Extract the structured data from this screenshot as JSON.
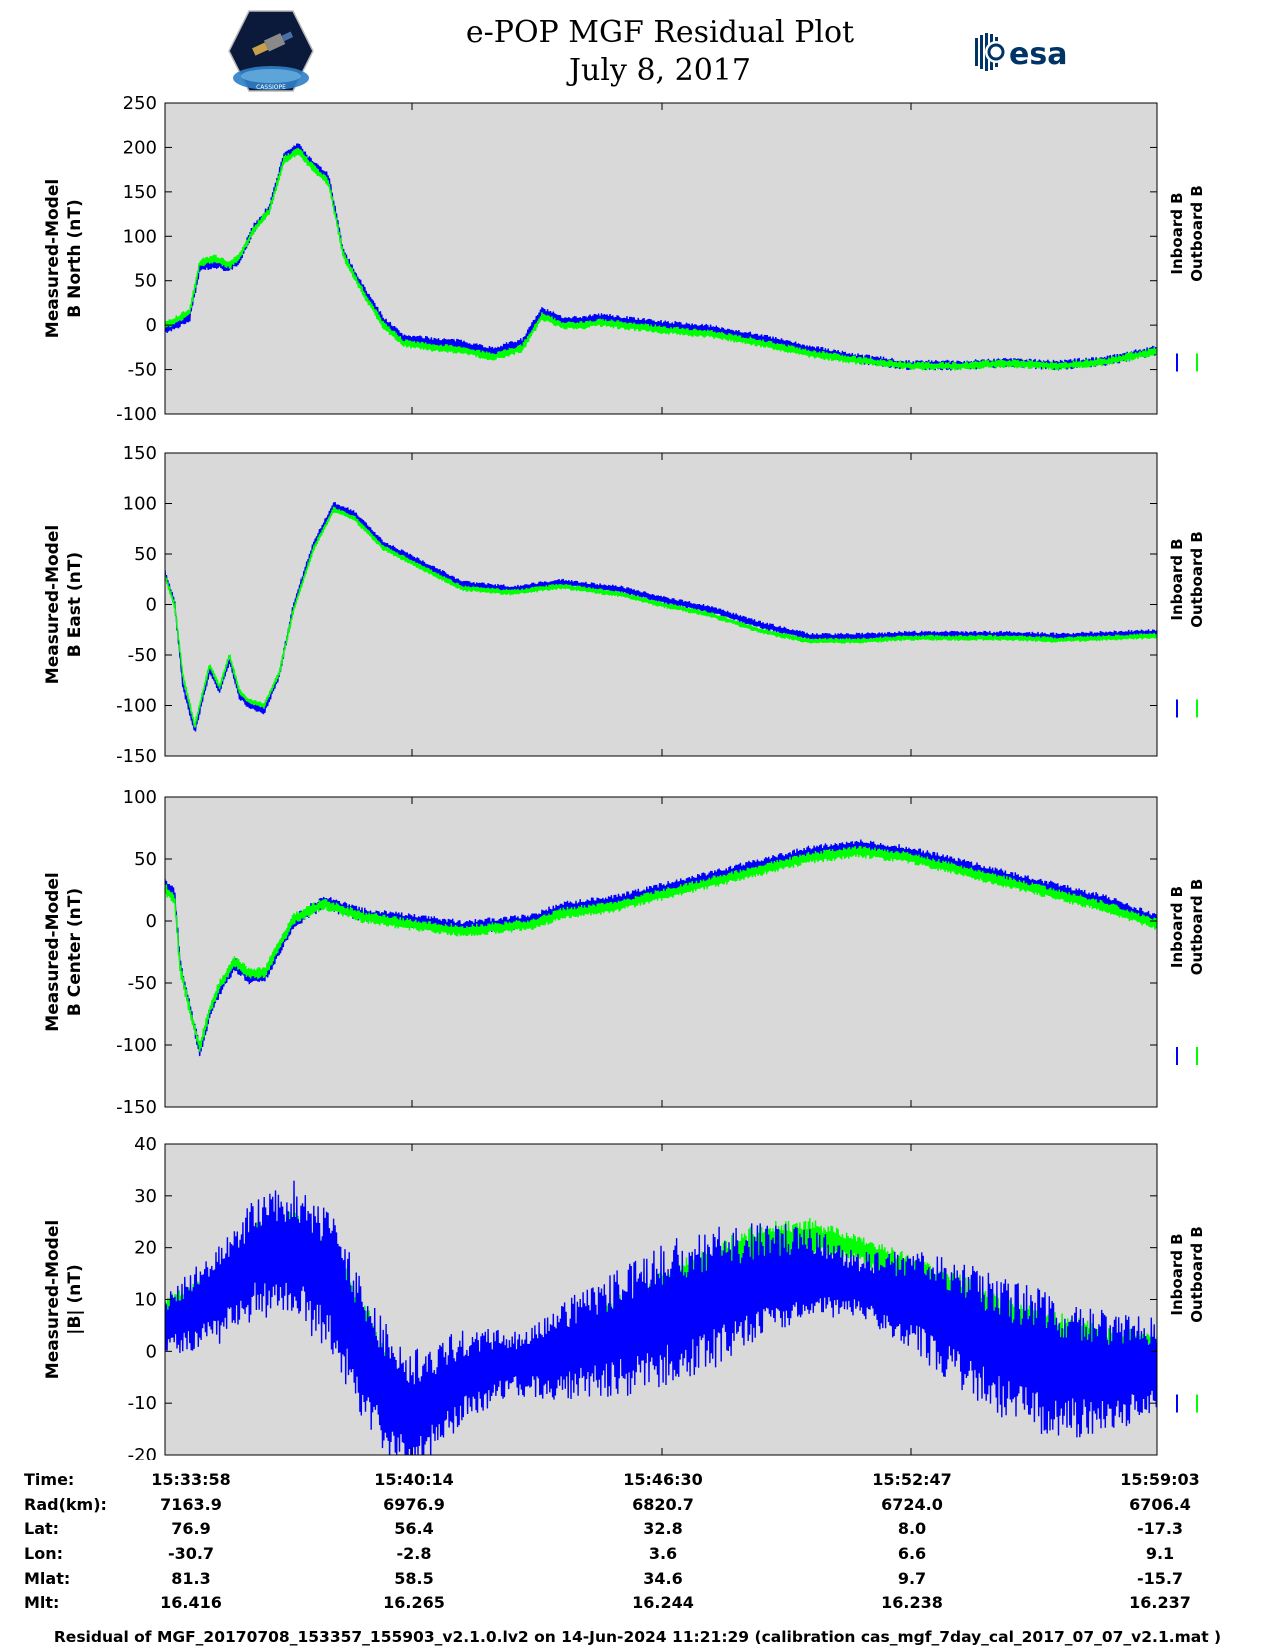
{
  "header": {
    "title": "e-POP MGF Residual Plot",
    "date": "July 8, 2017",
    "esa_logo_text": "esa",
    "cassiope_logo_text": "CASSIOPE"
  },
  "colors": {
    "inboard": "#0000ff",
    "outboard": "#00ff00",
    "plot_bg": "#d9d9d9"
  },
  "chart_data": [
    {
      "type": "line",
      "ylabel": [
        "Measured-Model",
        "B North (nT)"
      ],
      "ylim": [
        -100,
        250
      ],
      "yticks": [
        -100,
        -50,
        0,
        50,
        100,
        150,
        200,
        250
      ],
      "legend": [
        "Inboard B",
        "Outboard B"
      ],
      "legend_position": "right",
      "series": [
        {
          "name": "Inboard B",
          "color": "#0000ff",
          "x": [
            0,
            0.01,
            0.025,
            0.035,
            0.05,
            0.065,
            0.075,
            0.09,
            0.105,
            0.12,
            0.135,
            0.145,
            0.165,
            0.18,
            0.2,
            0.22,
            0.24,
            0.26,
            0.3,
            0.33,
            0.36,
            0.38,
            0.4,
            0.42,
            0.44,
            0.46,
            0.5,
            0.55,
            0.6,
            0.65,
            0.7,
            0.75,
            0.8,
            0.85,
            0.9,
            0.95,
            1.0
          ],
          "y": [
            -5,
            0,
            10,
            65,
            70,
            65,
            75,
            110,
            130,
            190,
            200,
            185,
            165,
            80,
            40,
            5,
            -15,
            -18,
            -22,
            -30,
            -20,
            15,
            5,
            5,
            8,
            5,
            0,
            -5,
            -15,
            -28,
            -38,
            -45,
            -45,
            -42,
            -45,
            -40,
            -28
          ],
          "noise": 6
        },
        {
          "name": "Outboard B",
          "color": "#00ff00",
          "x": [
            0,
            0.01,
            0.025,
            0.035,
            0.05,
            0.065,
            0.075,
            0.09,
            0.105,
            0.12,
            0.135,
            0.145,
            0.165,
            0.18,
            0.2,
            0.22,
            0.24,
            0.26,
            0.3,
            0.33,
            0.36,
            0.38,
            0.4,
            0.42,
            0.44,
            0.46,
            0.5,
            0.55,
            0.6,
            0.65,
            0.7,
            0.75,
            0.8,
            0.85,
            0.9,
            0.95,
            1.0
          ],
          "y": [
            0,
            5,
            15,
            70,
            75,
            68,
            78,
            108,
            128,
            186,
            196,
            182,
            160,
            78,
            36,
            0,
            -20,
            -24,
            -28,
            -36,
            -26,
            10,
            0,
            0,
            3,
            0,
            -5,
            -10,
            -20,
            -32,
            -40,
            -46,
            -46,
            -43,
            -46,
            -41,
            -29
          ],
          "noise": 5
        }
      ]
    },
    {
      "type": "line",
      "ylabel": [
        "Measured-Model",
        "B East (nT)"
      ],
      "ylim": [
        -150,
        150
      ],
      "yticks": [
        -150,
        -100,
        -50,
        0,
        50,
        100,
        150
      ],
      "legend": [
        "Inboard B",
        "Outboard B"
      ],
      "legend_position": "right",
      "series": [
        {
          "name": "Inboard B",
          "color": "#0000ff",
          "x": [
            0,
            0.01,
            0.018,
            0.03,
            0.045,
            0.055,
            0.065,
            0.075,
            0.085,
            0.1,
            0.115,
            0.13,
            0.15,
            0.17,
            0.19,
            0.22,
            0.26,
            0.3,
            0.35,
            0.4,
            0.43,
            0.46,
            0.5,
            0.55,
            0.6,
            0.65,
            0.7,
            0.75,
            0.8,
            0.85,
            0.9,
            0.95,
            1.0
          ],
          "y": [
            30,
            0,
            -80,
            -125,
            -65,
            -85,
            -55,
            -90,
            -100,
            -105,
            -70,
            0,
            60,
            98,
            90,
            60,
            40,
            20,
            15,
            22,
            18,
            15,
            5,
            -5,
            -20,
            -32,
            -32,
            -30,
            -30,
            -30,
            -32,
            -30,
            -28
          ],
          "noise": 4
        },
        {
          "name": "Outboard B",
          "color": "#00ff00",
          "x": [
            0,
            0.01,
            0.018,
            0.03,
            0.045,
            0.055,
            0.065,
            0.075,
            0.085,
            0.1,
            0.115,
            0.13,
            0.15,
            0.17,
            0.19,
            0.22,
            0.26,
            0.3,
            0.35,
            0.4,
            0.43,
            0.46,
            0.5,
            0.55,
            0.6,
            0.65,
            0.7,
            0.75,
            0.8,
            0.85,
            0.9,
            0.95,
            1.0
          ],
          "y": [
            28,
            -2,
            -70,
            -120,
            -60,
            -82,
            -50,
            -86,
            -96,
            -100,
            -68,
            -4,
            56,
            94,
            86,
            56,
            36,
            16,
            12,
            18,
            14,
            10,
            0,
            -10,
            -26,
            -36,
            -36,
            -33,
            -33,
            -33,
            -35,
            -33,
            -31
          ],
          "noise": 3
        }
      ]
    },
    {
      "type": "line",
      "ylabel": [
        "Measured-Model",
        "B Center (nT)"
      ],
      "ylim": [
        -150,
        100
      ],
      "yticks": [
        -150,
        -100,
        -50,
        0,
        50,
        100
      ],
      "legend": [
        "Inboard B",
        "Outboard B"
      ],
      "legend_position": "right",
      "series": [
        {
          "name": "Inboard B",
          "color": "#0000ff",
          "x": [
            0,
            0.01,
            0.015,
            0.025,
            0.035,
            0.045,
            0.055,
            0.07,
            0.085,
            0.1,
            0.13,
            0.16,
            0.2,
            0.25,
            0.3,
            0.37,
            0.4,
            0.45,
            0.5,
            0.55,
            0.6,
            0.65,
            0.7,
            0.75,
            0.8,
            0.85,
            0.9,
            0.95,
            1.0
          ],
          "y": [
            30,
            20,
            -35,
            -70,
            -105,
            -75,
            -55,
            -35,
            -45,
            -45,
            0,
            15,
            5,
            0,
            -5,
            0,
            10,
            15,
            25,
            35,
            45,
            55,
            60,
            55,
            45,
            35,
            25,
            15,
            0
          ],
          "noise": 6
        },
        {
          "name": "Outboard B",
          "color": "#00ff00",
          "x": [
            0,
            0.01,
            0.015,
            0.025,
            0.035,
            0.045,
            0.055,
            0.07,
            0.085,
            0.1,
            0.13,
            0.16,
            0.2,
            0.25,
            0.3,
            0.37,
            0.4,
            0.45,
            0.5,
            0.55,
            0.6,
            0.65,
            0.7,
            0.75,
            0.8,
            0.85,
            0.9,
            0.95,
            1.0
          ],
          "y": [
            26,
            16,
            -38,
            -72,
            -102,
            -72,
            -52,
            -33,
            -42,
            -42,
            2,
            14,
            3,
            -3,
            -8,
            -3,
            6,
            11,
            21,
            31,
            41,
            51,
            56,
            51,
            41,
            31,
            21,
            11,
            -3
          ],
          "noise": 5
        }
      ]
    },
    {
      "type": "line",
      "ylabel": [
        "Measured-Model",
        "|B| (nT)"
      ],
      "ylim": [
        -20,
        40
      ],
      "yticks": [
        -20,
        -10,
        0,
        10,
        20,
        30,
        40
      ],
      "legend": [
        "Inboard B",
        "Outboard B"
      ],
      "legend_position": "right",
      "series": [
        {
          "name": "Outboard B",
          "color": "#00ff00",
          "x": [
            0,
            0.05,
            0.09,
            0.13,
            0.17,
            0.2,
            0.23,
            0.25,
            0.28,
            0.3,
            0.33,
            0.36,
            0.4,
            0.45,
            0.5,
            0.55,
            0.6,
            0.65,
            0.7,
            0.75,
            0.8,
            0.85,
            0.9,
            0.95,
            1.0
          ],
          "y": [
            8,
            12,
            20,
            22,
            15,
            5,
            -8,
            -12,
            -10,
            -5,
            -3,
            -2,
            0,
            5,
            10,
            15,
            20,
            22,
            20,
            15,
            10,
            5,
            2,
            0,
            0
          ],
          "noise": 4
        },
        {
          "name": "Inboard B",
          "color": "#0000ff",
          "x": [
            0,
            0.05,
            0.09,
            0.13,
            0.17,
            0.2,
            0.23,
            0.25,
            0.28,
            0.3,
            0.33,
            0.36,
            0.4,
            0.45,
            0.5,
            0.55,
            0.6,
            0.65,
            0.7,
            0.75,
            0.8,
            0.85,
            0.9,
            0.95,
            1.0
          ],
          "y": [
            5,
            10,
            18,
            20,
            12,
            0,
            -10,
            -12,
            -8,
            -5,
            -3,
            -2,
            0,
            3,
            7,
            10,
            13,
            15,
            13,
            10,
            5,
            0,
            -3,
            -4,
            -3
          ],
          "noise": 10
        }
      ]
    }
  ],
  "x_axis": {
    "tick_times": [
      "15:33:58",
      "15:40:14",
      "15:46:30",
      "15:52:47",
      "15:59:03"
    ]
  },
  "ephemeris": {
    "labels": [
      "Time:",
      "Rad(km):",
      "Lat:",
      "Lon:",
      "Mlat:",
      "Mlt:"
    ],
    "columns": [
      [
        "15:33:58",
        "7163.9",
        "76.9",
        "-30.7",
        "81.3",
        "16.416"
      ],
      [
        "15:40:14",
        "6976.9",
        "56.4",
        "-2.8",
        "58.5",
        "16.265"
      ],
      [
        "15:46:30",
        "6820.7",
        "32.8",
        "3.6",
        "34.6",
        "16.244"
      ],
      [
        "15:52:47",
        "6724.0",
        "8.0",
        "6.6",
        "9.7",
        "16.238"
      ],
      [
        "15:59:03",
        "6706.4",
        "-17.3",
        "9.1",
        "-15.7",
        "16.237"
      ]
    ]
  },
  "footer": "Residual of MGF_20170708_153357_155903_v2.1.0.lv2 on 14-Jun-2024 11:21:29 (calibration cas_mgf_7day_cal_2017_07_07_v2.1.mat )"
}
